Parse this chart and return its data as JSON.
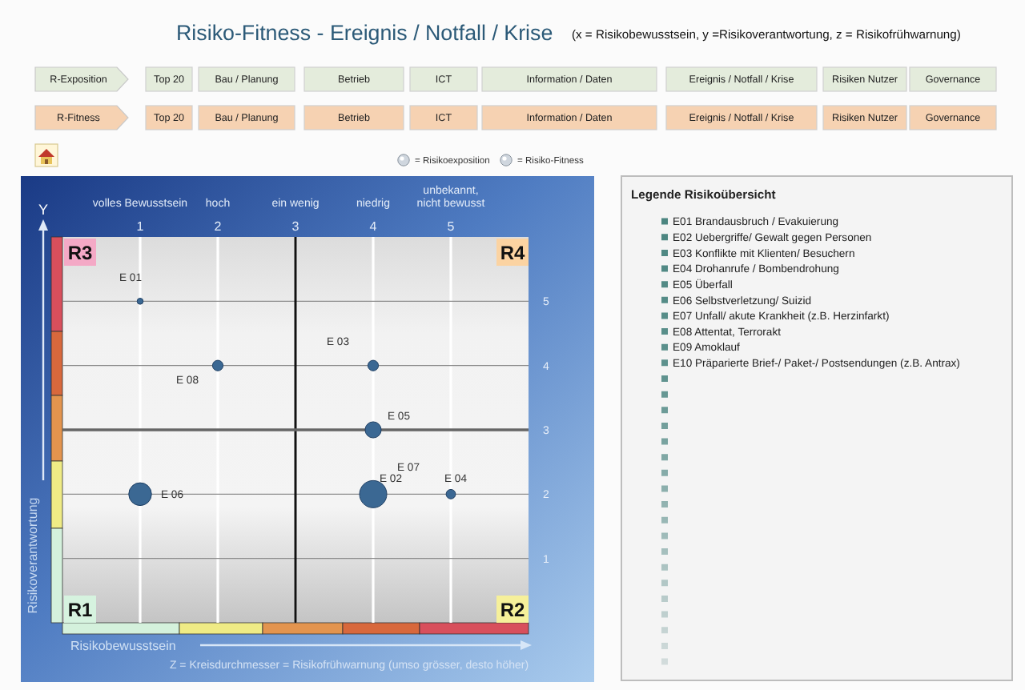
{
  "chart_data": [
    {
      "type": "other",
      "title": "Risiko-Fitness - Ereignis / Notfall / Krise",
      "subtitle": "(x = Risikobewusstsein, y =Risikoverantwortung, z = Risikofrühwarnung)",
      "annotations": [
        "R-Exposition",
        "Top 20",
        "Bau / Planung",
        "Betrieb",
        "ICT",
        "Information / Daten",
        "Ereignis / Notfall / Krise",
        "Risiken Nutzer",
        "Governance",
        "R-Fitness",
        "Top 20",
        "Bau / Planung",
        "Betrieb",
        "ICT",
        "Information / Daten",
        "Ereignis / Notfall / Krise",
        "Risiken Nutzer",
        "Governance"
      ]
    },
    {
      "type": "bubble",
      "xlabel": "Risikobewusstsein",
      "ylabel": "Risikoverantwortung",
      "annotations": [
        "= Risikoexposition",
        "= Risiko-Fitness",
        "Z = Kreisdurchmesser = Risikofrühwarnung (umso grösser, desto höher)",
        "Y",
        "volles Bewusstsein",
        "hoch",
        "ein wenig",
        "niedrig",
        "unbekannt, nicht bewusst",
        "R3",
        "R4",
        "R1",
        "R2",
        {
          "text": "E 07",
          "x": 4,
          "y": 2
        }
      ],
      "xlim": [
        0,
        6
      ],
      "xticks": [
        1,
        2,
        3,
        4,
        5
      ],
      "ylim": [
        0,
        6
      ],
      "yticks": [
        1,
        2,
        3,
        4,
        5
      ],
      "grid": true,
      "ref_lines": [
        {
          "axis": "x",
          "value": 3,
          "color": "#111111"
        },
        {
          "axis": "y",
          "value": 3,
          "color": "#666666"
        }
      ],
      "x": [
        1,
        4,
        4,
        5,
        4,
        1,
        2
      ],
      "series": [
        {
          "color": "#3b6893",
          "values": [
            5,
            2,
            4,
            2,
            3,
            2,
            4
          ],
          "sizes": [
            0.05,
            1,
            0.15,
            0.12,
            0.35,
            0.7,
            0.15
          ],
          "value_labels": [
            "E 01",
            "E 02",
            "E 03",
            "E 04",
            "E 05",
            "E 06",
            "E 08"
          ]
        }
      ]
    },
    {
      "type": "other",
      "title": "Legende Risikoübersicht",
      "annotations": [
        "E01 Brandausbruch / Evakuierung",
        "E02 Uebergriffe/ Gewalt gegen Personen",
        "E03 Konflikte mit Klienten/ Besuchern",
        "E04 Drohanrufe / Bombendrohung",
        "E05 Überfall",
        "E06 Selbstverletzung/ Suizid",
        "E07 Unfall/ akute Krankheit (z.B. Herzinfarkt)",
        "E08 Attentat, Terrorakt",
        "E09 Amoklauf",
        "E10 Präparierte Brief-/ Paket-/ Postsendungen (z.B. Antrax)"
      ]
    }
  ]
}
